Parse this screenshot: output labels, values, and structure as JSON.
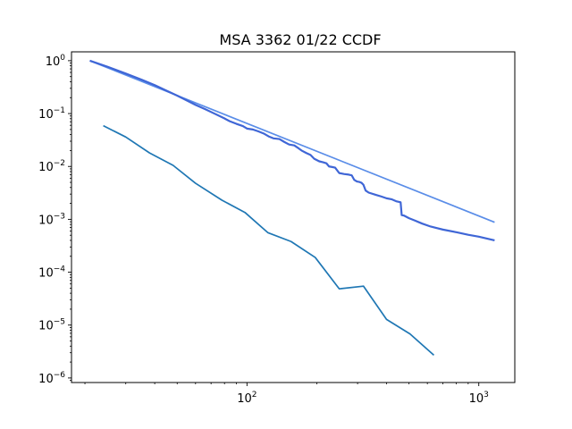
{
  "chart_data": {
    "type": "line",
    "title": "MSA 3362 01/22 CCDF",
    "xlabel": "",
    "ylabel": "",
    "xscale": "log",
    "yscale": "log",
    "xlim": [
      17.5,
      1430
    ],
    "ylim": [
      8.2e-07,
      1.47
    ],
    "grid": false,
    "legend": "none",
    "x_ticks": [
      {
        "value": 100,
        "base": "10",
        "exp": "2"
      },
      {
        "value": 1000,
        "base": "10",
        "exp": "3"
      }
    ],
    "y_ticks": [
      {
        "value": 1,
        "base": "10",
        "exp": "0"
      },
      {
        "value": 0.1,
        "base": "10",
        "exp": "−1"
      },
      {
        "value": 0.01,
        "base": "10",
        "exp": "−2"
      },
      {
        "value": 0.001,
        "base": "10",
        "exp": "−3"
      },
      {
        "value": 0.0001,
        "base": "10",
        "exp": "−4"
      },
      {
        "value": 1e-05,
        "base": "10",
        "exp": "−5"
      },
      {
        "value": 1e-06,
        "base": "10",
        "exp": "−6"
      }
    ],
    "series": [
      {
        "color": "#5a8de8",
        "width": 1.7,
        "x": [
          21,
          1170
        ],
        "y": [
          1.0,
          0.00088
        ]
      },
      {
        "color": "#3f66d6",
        "width": 2.2,
        "x": [
          21,
          25,
          30,
          35,
          40,
          45,
          50,
          55,
          60,
          66,
          72,
          80,
          84,
          90,
          96,
          100,
          106,
          112,
          118,
          124,
          130,
          138,
          145,
          152,
          160,
          167,
          172,
          180,
          188,
          195,
          205,
          213,
          220,
          226,
          232,
          240,
          250,
          262,
          275,
          283,
          290,
          298,
          305,
          312,
          318,
          325,
          335,
          360,
          380,
          400,
          420,
          440,
          460,
          465,
          475,
          500,
          530,
          570,
          620,
          700,
          800,
          900,
          1000,
          1170
        ],
        "y": [
          1.0,
          0.77,
          0.57,
          0.44,
          0.345,
          0.27,
          0.218,
          0.177,
          0.146,
          0.121,
          0.101,
          0.081,
          0.072,
          0.064,
          0.058,
          0.052,
          0.05,
          0.046,
          0.042,
          0.037,
          0.034,
          0.033,
          0.029,
          0.026,
          0.025,
          0.022,
          0.02,
          0.018,
          0.0165,
          0.014,
          0.0125,
          0.012,
          0.0115,
          0.01,
          0.0098,
          0.0095,
          0.0075,
          0.0072,
          0.007,
          0.0068,
          0.0056,
          0.0052,
          0.0051,
          0.0049,
          0.0045,
          0.0035,
          0.0032,
          0.0029,
          0.0027,
          0.0025,
          0.0024,
          0.0022,
          0.0021,
          0.0012,
          0.00118,
          0.00105,
          0.00095,
          0.00083,
          0.00073,
          0.00064,
          0.00057,
          0.00051,
          0.00047,
          0.0004
        ]
      },
      {
        "color": "#1f77b4",
        "width": 1.7,
        "x": [
          24,
          30,
          38,
          48,
          60,
          78,
          98,
          123,
          155,
          197,
          250,
          318,
          400,
          505,
          640
        ],
        "y": [
          0.059,
          0.036,
          0.018,
          0.0105,
          0.0048,
          0.0023,
          0.00135,
          0.00056,
          0.00038,
          0.00019,
          4.85e-05,
          5.45e-05,
          1.28e-05,
          6.8e-06,
          2.7e-06
        ]
      }
    ]
  }
}
